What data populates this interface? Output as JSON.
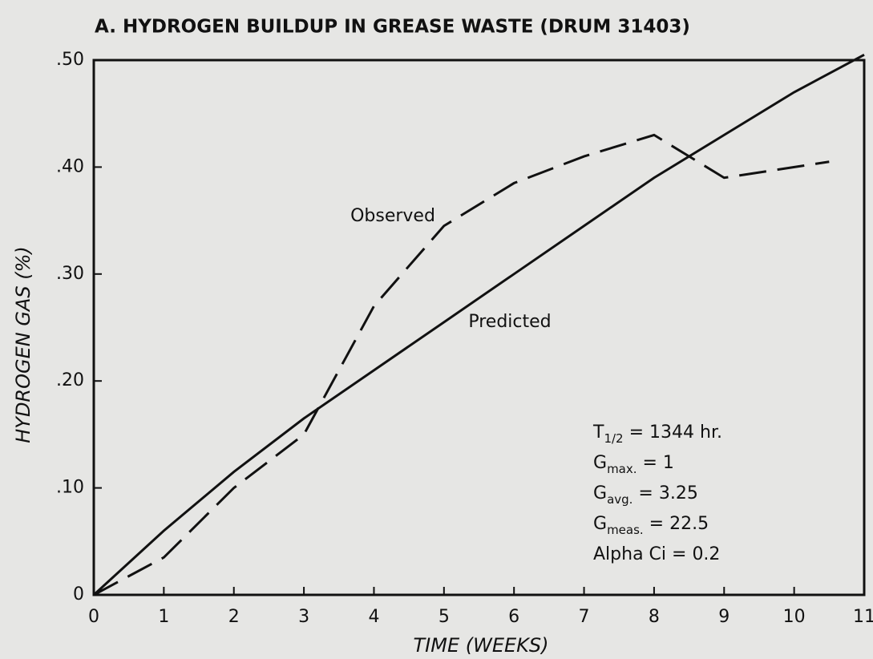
{
  "chart_data": {
    "type": "line",
    "title": "A. HYDROGEN BUILDUP IN GREASE WASTE  (DRUM 31403)",
    "x_label": "TIME  (WEEKS)",
    "y_label": "HYDROGEN GAS (%)",
    "xlim": [
      0,
      11
    ],
    "ylim": [
      0,
      0.5
    ],
    "xticks": [
      0,
      1,
      2,
      3,
      4,
      5,
      6,
      7,
      8,
      9,
      10,
      11
    ],
    "yticks": [
      0,
      {
        "value": 0.1,
        "label": ".10"
      },
      {
        "value": 0.2,
        "label": ".20"
      },
      {
        "value": 0.3,
        "label": ".30"
      },
      {
        "value": 0.4,
        "label": ".40"
      },
      {
        "value": 0.5,
        "label": ".50"
      }
    ],
    "series": [
      {
        "name": "Predicted",
        "color": "#111111",
        "dash": false,
        "x": [
          0,
          1,
          2,
          3,
          4,
          5,
          6,
          7,
          8,
          9,
          10,
          11
        ],
        "values": [
          0,
          0.06,
          0.115,
          0.165,
          0.21,
          0.255,
          0.3,
          0.345,
          0.39,
          0.43,
          0.47,
          0.505
        ]
      },
      {
        "name": "Observed",
        "color": "#111111",
        "dash": true,
        "x": [
          0,
          1,
          2,
          3,
          4,
          5,
          6,
          7,
          8,
          9,
          10.5
        ],
        "values": [
          0,
          0.035,
          0.1,
          0.15,
          0.27,
          0.345,
          0.385,
          0.41,
          0.43,
          0.39,
          0.405
        ]
      }
    ],
    "annotations": [
      {
        "main": "T",
        "sub": "1/2",
        "rest": " = 1344 hr."
      },
      {
        "main": "G",
        "sub": "max.",
        "rest": " = 1"
      },
      {
        "main": "G",
        "sub": "avg.",
        "rest": " = 3.25"
      },
      {
        "main": "G",
        "sub": "meas.",
        "rest": " = 22.5"
      },
      {
        "main": "Alpha Ci = 0.2",
        "sub": "",
        "rest": ""
      }
    ]
  }
}
